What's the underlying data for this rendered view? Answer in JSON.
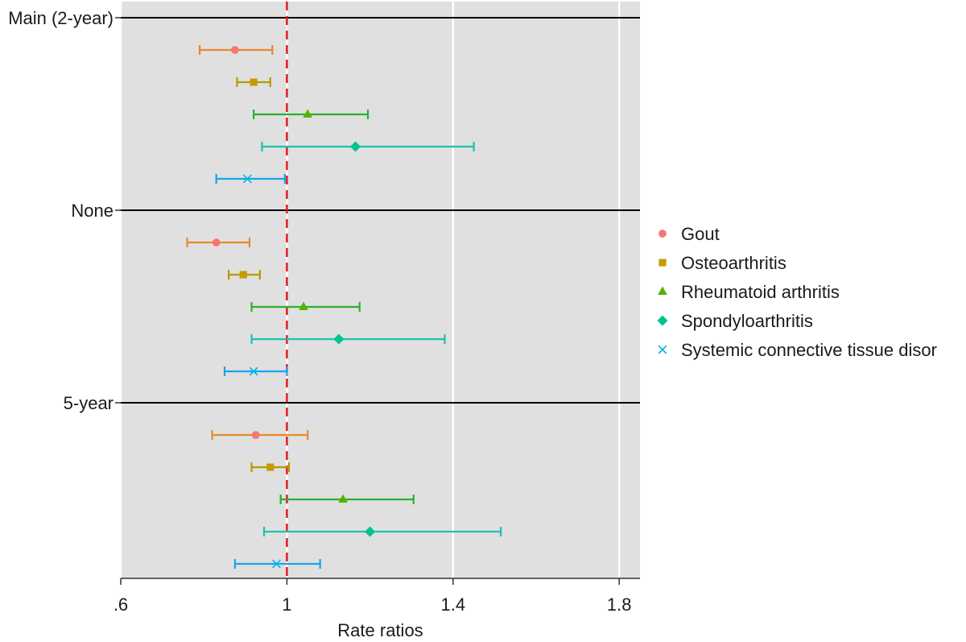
{
  "chart_data": {
    "type": "forest",
    "xlabel": "Rate ratios",
    "xlim": [
      0.6,
      1.85
    ],
    "x_ticks": [
      {
        "value": 0.6,
        "label": ".6"
      },
      {
        "value": 1.0,
        "label": "1"
      },
      {
        "value": 1.4,
        "label": "1.4"
      },
      {
        "value": 1.8,
        "label": "1.8"
      }
    ],
    "reference_line": 1.0,
    "reference_line_style": "red dashed",
    "groups": [
      {
        "label": "Main (2-year)",
        "rows": [
          {
            "series": "Gout",
            "estimate": 0.875,
            "lower": 0.79,
            "upper": 0.965
          },
          {
            "series": "Osteoarthritis",
            "estimate": 0.92,
            "lower": 0.88,
            "upper": 0.96
          },
          {
            "series": "Rheumatoid arthritis",
            "estimate": 1.05,
            "lower": 0.92,
            "upper": 1.195
          },
          {
            "series": "Spondyloarthritis",
            "estimate": 1.165,
            "lower": 0.94,
            "upper": 1.45
          },
          {
            "series": "Systemic connective tissue disorder",
            "estimate": 0.905,
            "lower": 0.83,
            "upper": 0.995
          }
        ]
      },
      {
        "label": "None",
        "rows": [
          {
            "series": "Gout",
            "estimate": 0.83,
            "lower": 0.76,
            "upper": 0.91
          },
          {
            "series": "Osteoarthritis",
            "estimate": 0.895,
            "lower": 0.86,
            "upper": 0.935
          },
          {
            "series": "Rheumatoid arthritis",
            "estimate": 1.04,
            "lower": 0.915,
            "upper": 1.175
          },
          {
            "series": "Spondyloarthritis",
            "estimate": 1.125,
            "lower": 0.915,
            "upper": 1.38
          },
          {
            "series": "Systemic connective tissue disorder",
            "estimate": 0.92,
            "lower": 0.85,
            "upper": 1.0
          }
        ]
      },
      {
        "label": "5-year",
        "rows": [
          {
            "series": "Gout",
            "estimate": 0.925,
            "lower": 0.82,
            "upper": 1.05
          },
          {
            "series": "Osteoarthritis",
            "estimate": 0.96,
            "lower": 0.915,
            "upper": 1.005
          },
          {
            "series": "Rheumatoid arthritis",
            "estimate": 1.135,
            "lower": 0.985,
            "upper": 1.305
          },
          {
            "series": "Spondyloarthritis",
            "estimate": 1.2,
            "lower": 0.945,
            "upper": 1.515
          },
          {
            "series": "Systemic connective tissue disorder",
            "estimate": 0.975,
            "lower": 0.875,
            "upper": 1.08
          }
        ]
      }
    ],
    "legend": {
      "placement": "right",
      "entries": [
        {
          "name": "Gout",
          "color": "#F8766D",
          "bar_color": "#E8892A",
          "marker": "circle"
        },
        {
          "name": "Osteoarthritis",
          "color": "#C49A00",
          "bar_color": "#B59A00",
          "marker": "square"
        },
        {
          "name": "Rheumatoid arthritis",
          "color": "#53B400",
          "bar_color": "#2BB02B",
          "marker": "triangle"
        },
        {
          "name": "Spondyloarthritis",
          "color": "#00C094",
          "bar_color": "#1CC0B4",
          "marker": "diamond"
        },
        {
          "name": "Systemic connective tissue disor",
          "color": "#00B6EB",
          "bar_color": "#1AA3EC",
          "marker": "cross"
        }
      ]
    },
    "panel_background": "#E0E0E0",
    "grid": true
  }
}
